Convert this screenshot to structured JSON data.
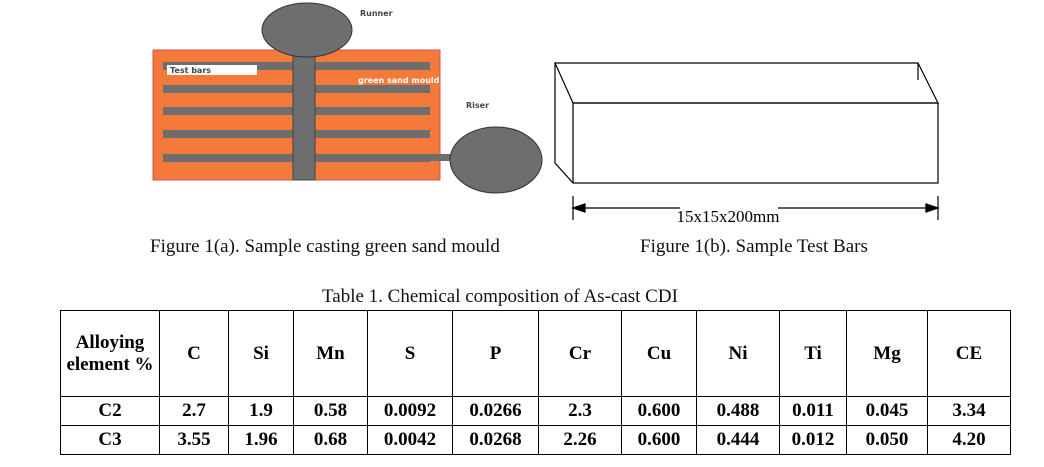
{
  "figure_a": {
    "runner": "Runner",
    "test_bars": "Test bars",
    "mould": "green sand mould",
    "riser": "Riser",
    "caption": "Figure 1(a). Sample casting green sand mould"
  },
  "figure_b": {
    "dimension": "15x15x200mm",
    "caption": "Figure 1(b). Sample Test Bars"
  },
  "table": {
    "title": "Table 1. Chemical composition of As-cast CDI",
    "header": [
      "Alloying element %",
      "C",
      "Si",
      "Mn",
      "S",
      "P",
      "Cr",
      "Cu",
      "Ni",
      "Ti",
      "Mg",
      "CE"
    ],
    "rows": [
      [
        "C2",
        "2.7",
        "1.9",
        "0.58",
        "0.0092",
        "0.0266",
        "2.3",
        "0.600",
        "0.488",
        "0.011",
        "0.045",
        "3.34"
      ],
      [
        "C3",
        "3.55",
        "1.96",
        "0.68",
        "0.0042",
        "0.0268",
        "2.26",
        "0.600",
        "0.444",
        "0.012",
        "0.050",
        "4.20"
      ]
    ]
  }
}
